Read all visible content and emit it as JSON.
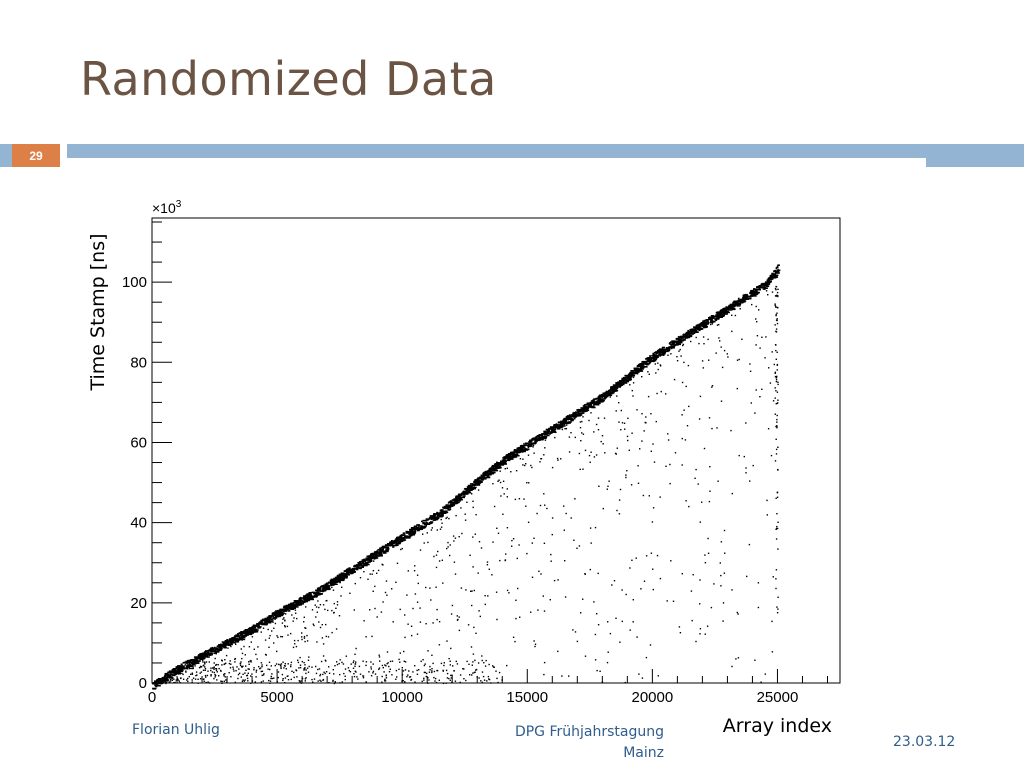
{
  "slide": {
    "title": "Randomized Data",
    "number": "29",
    "footer_left": "Florian Uhlig",
    "footer_center_line1": "DPG Frühjahrstagung",
    "footer_center_line2": "Mainz",
    "footer_right": "23.03.12"
  },
  "colors": {
    "title": "#6b5444",
    "accent_bar": "#93b4d2",
    "badge": "#dd8048",
    "footer_text": "#2f5d8c",
    "points": "#000000"
  },
  "chart_data": {
    "type": "scatter",
    "title": "",
    "xlabel": "Array index",
    "ylabel": "Time Stamp [ns]",
    "y_multiplier_label": "×10",
    "y_multiplier_exponent": "3",
    "xlim": [
      0,
      27500
    ],
    "ylim": [
      0,
      116
    ],
    "xticks": [
      0,
      5000,
      10000,
      15000,
      20000,
      25000
    ],
    "xtick_labels": [
      "0",
      "5000",
      "10000",
      "15000",
      "20000",
      "25000"
    ],
    "yticks": [
      0,
      20,
      40,
      60,
      80,
      100
    ],
    "ytick_labels": [
      "0",
      "20",
      "40",
      "60",
      "80",
      "100"
    ],
    "grid": false,
    "legend": "none",
    "main_band": [
      [
        0,
        0
      ],
      [
        1000,
        4
      ],
      [
        2500,
        9
      ],
      [
        4000,
        14
      ],
      [
        5000,
        18
      ],
      [
        6500,
        23
      ],
      [
        8000,
        29
      ],
      [
        9000,
        33
      ],
      [
        10000,
        37
      ],
      [
        11500,
        43
      ],
      [
        13000,
        51
      ],
      [
        14000,
        56
      ],
      [
        15000,
        60
      ],
      [
        16500,
        66
      ],
      [
        18000,
        72
      ],
      [
        19000,
        77
      ],
      [
        20000,
        82
      ],
      [
        21500,
        88
      ],
      [
        23000,
        94
      ],
      [
        24500,
        100
      ],
      [
        25000,
        104
      ]
    ],
    "x_max_index": 25000,
    "notes": "Dense band of timestamps rising linearly with array index; sparse scattered points lie below the band; vertical column of isolated points near x=25000."
  }
}
